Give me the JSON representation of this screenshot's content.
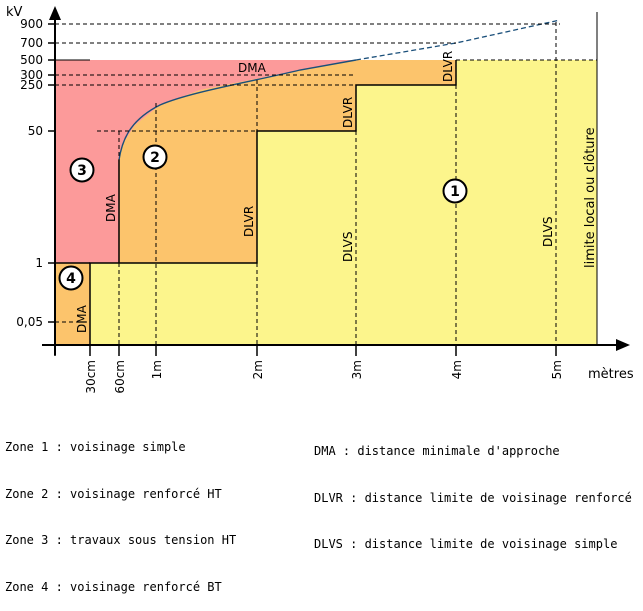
{
  "axis": {
    "y_unit": "kV",
    "x_unit": "mètres",
    "y_ticks": [
      "900",
      "700",
      "500",
      "300",
      "250",
      "50",
      "1",
      "0,05"
    ],
    "x_ticks": [
      "30cm",
      "60cm",
      "1m",
      "2m",
      "3m",
      "4m",
      "5m"
    ]
  },
  "zones": {
    "zone1_badge": "1",
    "zone2_badge": "2",
    "zone3_badge": "3",
    "zone4_badge": "4"
  },
  "labels": {
    "dma_curve": "DMA",
    "dma_zone2": "DMA",
    "dma_zone4": "DMA",
    "dlvr_2m": "DLVR",
    "dlvr_3m": "DLVR",
    "dlvr_4m": "DLVR",
    "dlvs_3m": "DLVS",
    "dlvs_5m": "DLVS",
    "limit_vertical": "limite local ou clôture"
  },
  "legend": {
    "zones": [
      "Zone 1 : voisinage simple",
      "Zone 2 : voisinage renforcé HT",
      "Zone 3 : travaux sous tension HT",
      "Zone 4 : voisinage renforcé BT"
    ],
    "abbreviations": [
      "DMA : distance minimale d'approche",
      "DLVR : distance limite de voisinage renforcé",
      "DLVS : distance limite de voisinage simple"
    ]
  },
  "colors": {
    "zone1": "#fcf58c",
    "zone2": "#fcc46c",
    "zone3": "#fc9a9a",
    "zone4": "#fcc46c",
    "curve": "#1a4f7a"
  }
}
